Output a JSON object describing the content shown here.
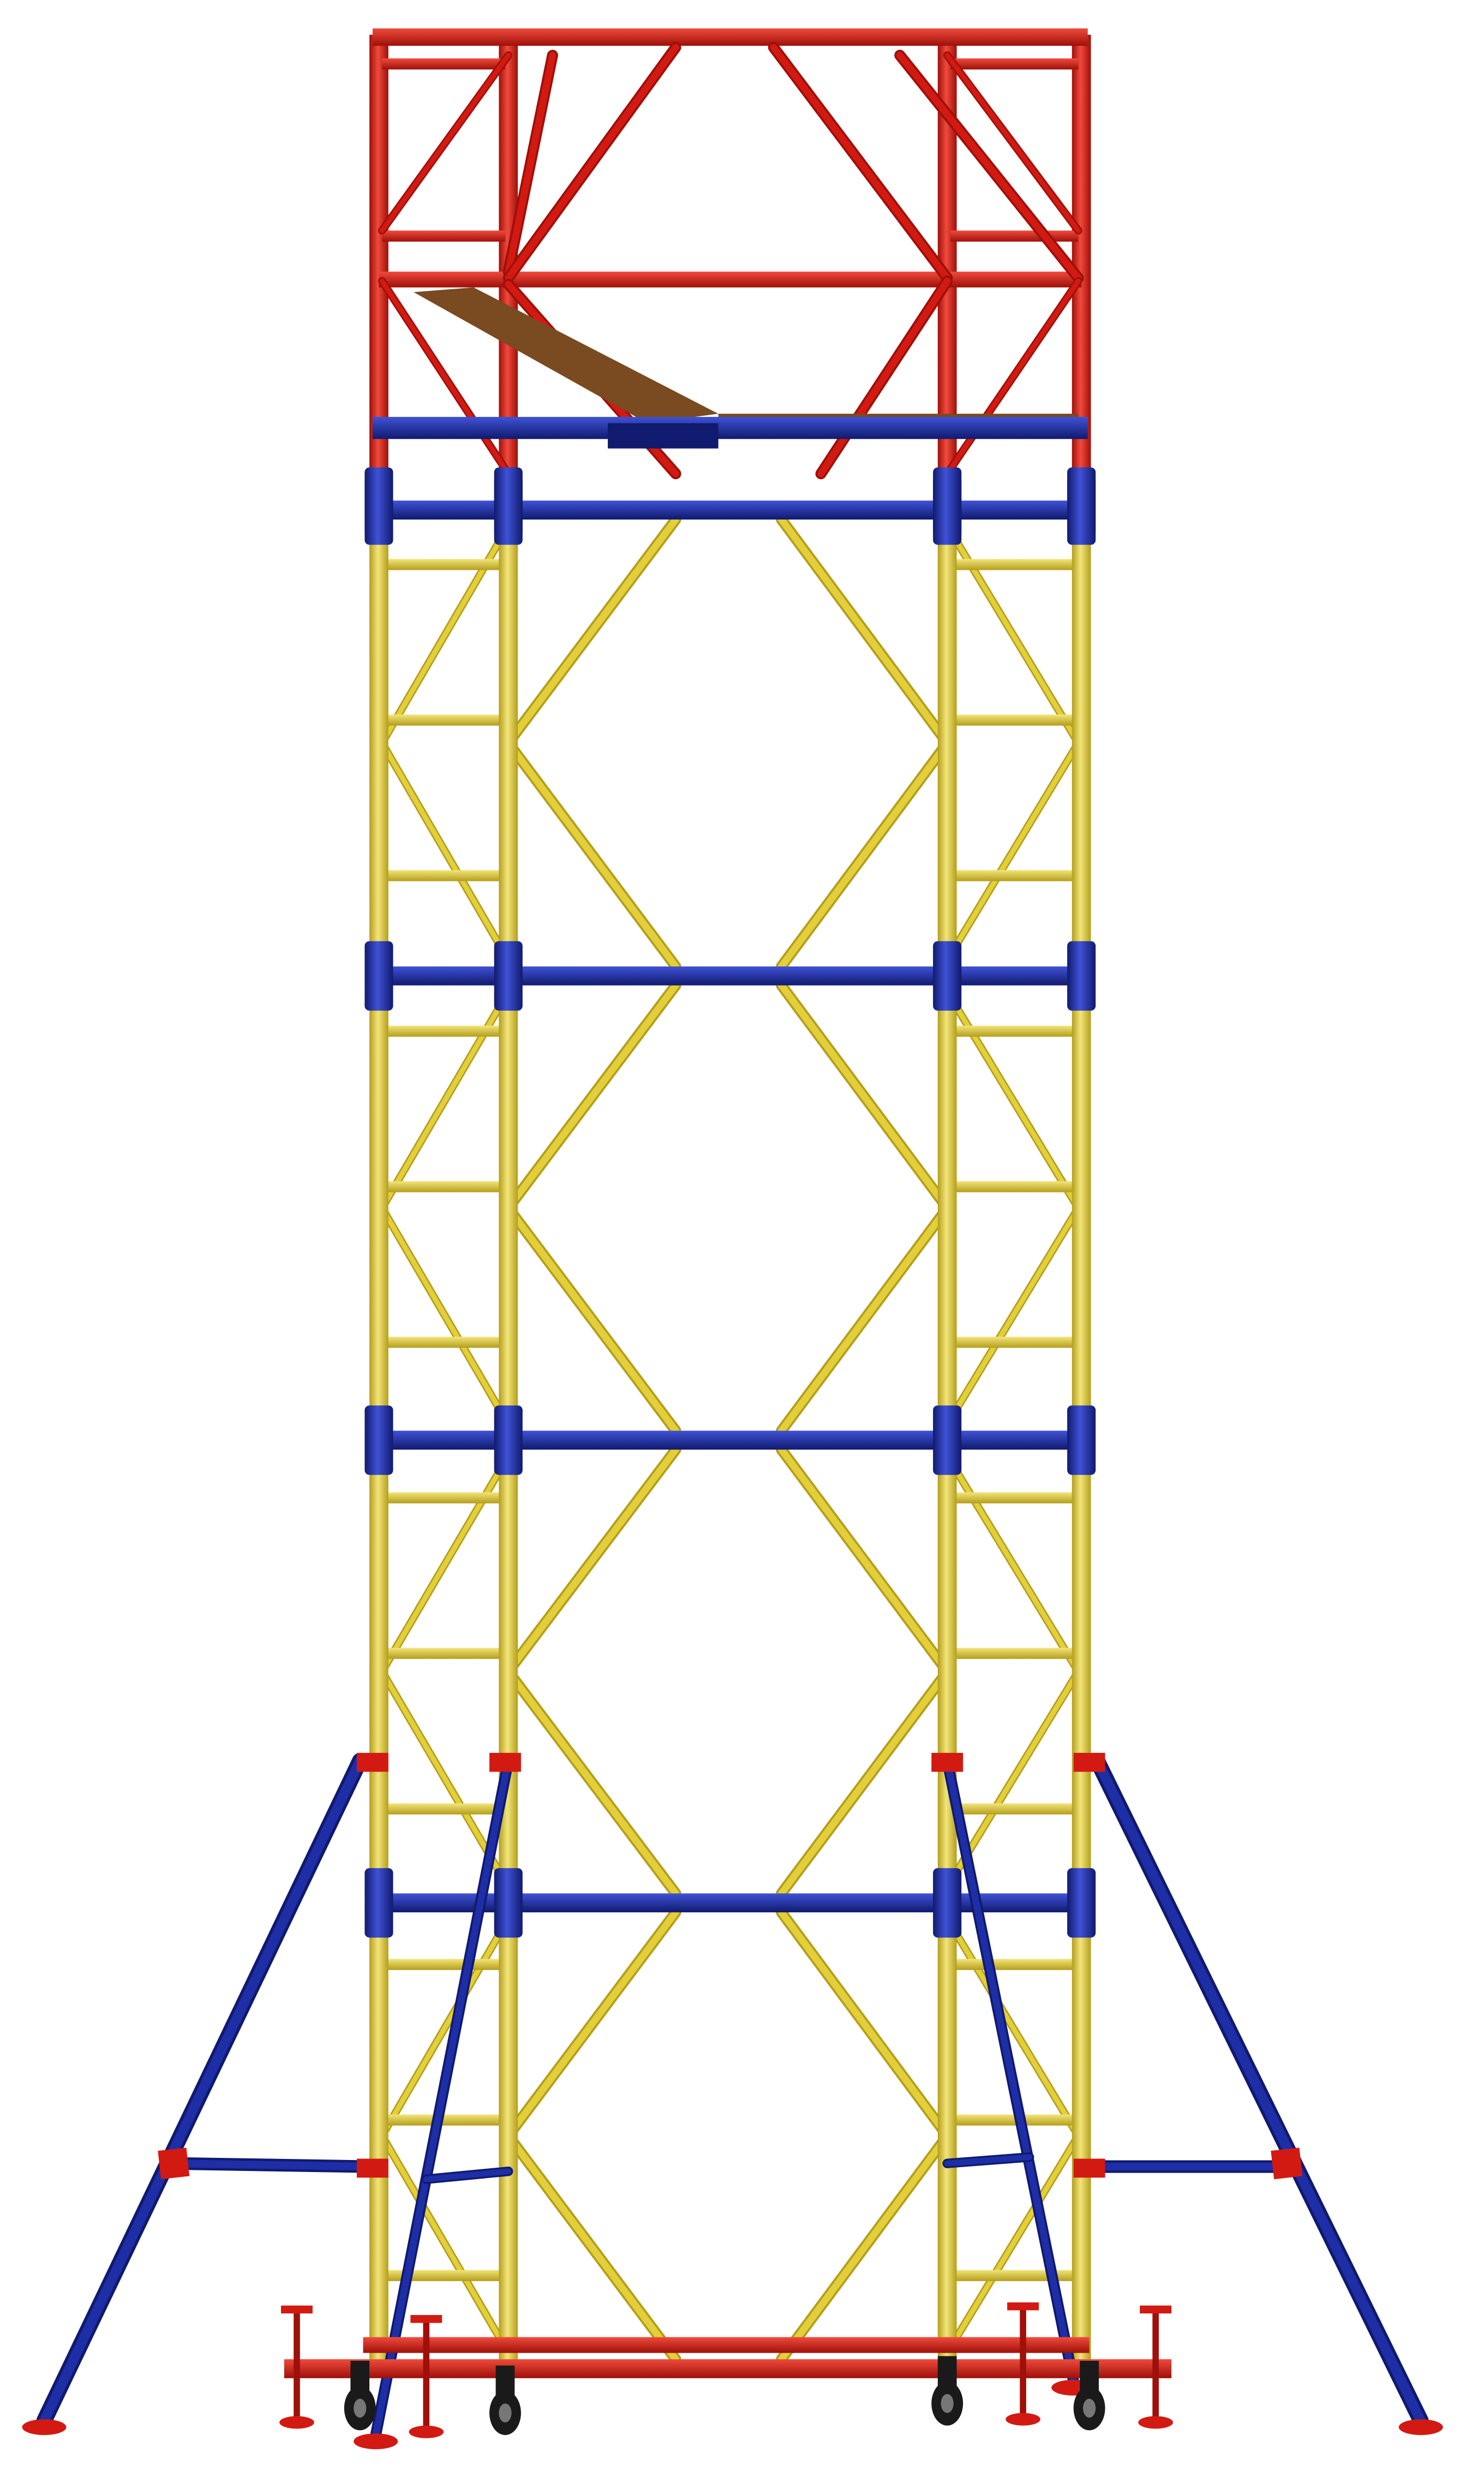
{
  "image": {
    "subject": "mobile-scaffold-tower",
    "colors": {
      "frame_red": "#d21a12",
      "frame_red_dark": "#9e1009",
      "tube_yellow": "#e3cf3a",
      "tube_yellow_dark": "#b49e1c",
      "tube_blue": "#1e2ea6",
      "tube_blue_dark": "#101a6e",
      "deck_wood": "#7a4a20",
      "wheel_black": "#1a1a1a",
      "background": "#ffffff"
    }
  }
}
